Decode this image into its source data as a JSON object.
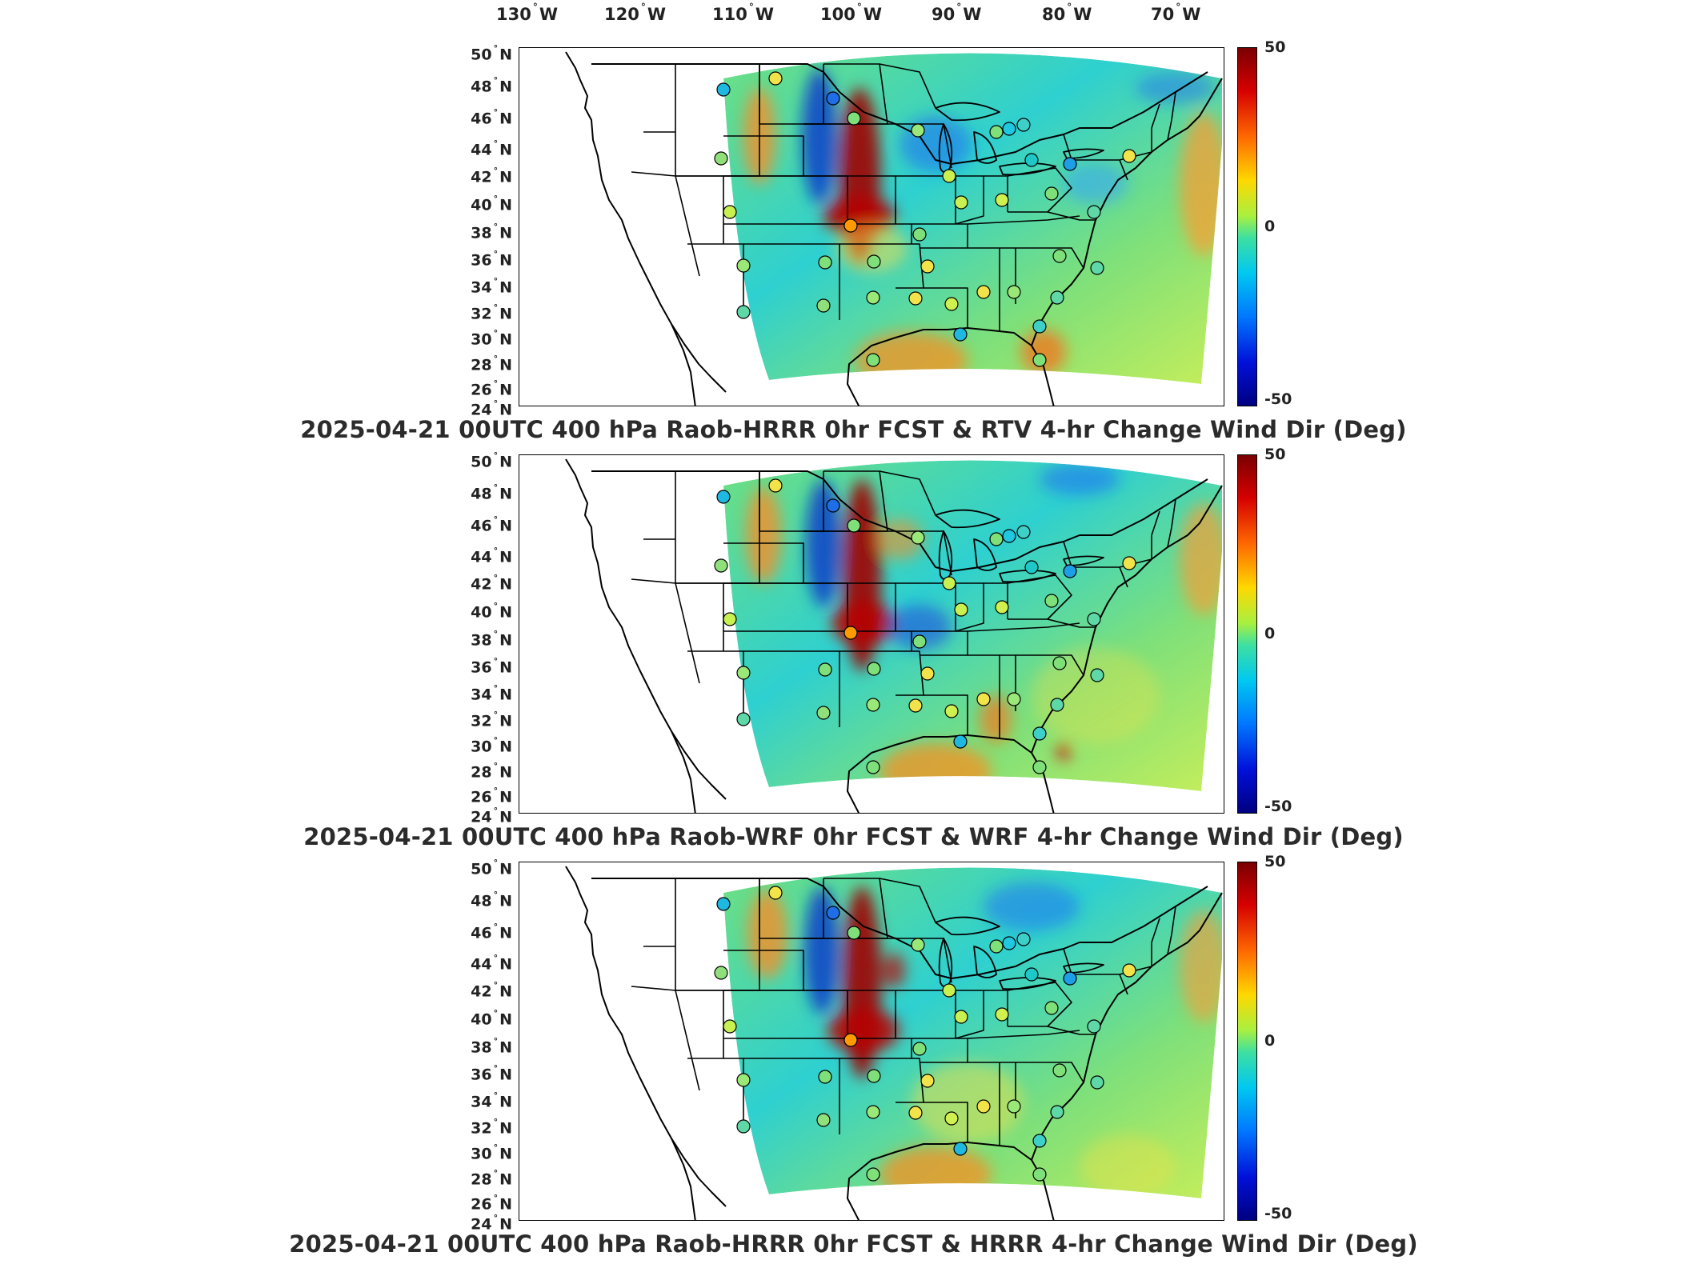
{
  "longitude_labels": [
    {
      "deg": "130",
      "dir": "W"
    },
    {
      "deg": "120",
      "dir": "W"
    },
    {
      "deg": "110",
      "dir": "W"
    },
    {
      "deg": "100",
      "dir": "W"
    },
    {
      "deg": "90",
      "dir": "W"
    },
    {
      "deg": "80",
      "dir": "W"
    },
    {
      "deg": "70",
      "dir": "W"
    }
  ],
  "latitude_labels": [
    {
      "deg": "50",
      "dir": "N"
    },
    {
      "deg": "48",
      "dir": "N"
    },
    {
      "deg": "46",
      "dir": "N"
    },
    {
      "deg": "44",
      "dir": "N"
    },
    {
      "deg": "42",
      "dir": "N"
    },
    {
      "deg": "40",
      "dir": "N"
    },
    {
      "deg": "38",
      "dir": "N"
    },
    {
      "deg": "36",
      "dir": "N"
    },
    {
      "deg": "34",
      "dir": "N"
    },
    {
      "deg": "32",
      "dir": "N"
    },
    {
      "deg": "30",
      "dir": "N"
    },
    {
      "deg": "28",
      "dir": "N"
    },
    {
      "deg": "26",
      "dir": "N"
    },
    {
      "deg": "24",
      "dir": "N"
    }
  ],
  "colorbar": {
    "max_label": "50",
    "mid_label": "0",
    "min_label": "-50",
    "colors": [
      "#7a0000",
      "#d60000",
      "#ff6a00",
      "#ffd800",
      "#a8f040",
      "#3ee0a0",
      "#00c8f0",
      "#0078ff",
      "#0010d8",
      "#000080"
    ]
  },
  "panels": [
    {
      "title": "2025-04-21 00UTC 400 hPa Raob-HRRR 0hr FCST & RTV 4-hr Change Wind Dir (Deg)"
    },
    {
      "title": "2025-04-21 00UTC 400 hPa Raob-WRF 0hr FCST & WRF 4-hr Change Wind Dir (Deg)"
    },
    {
      "title": "2025-04-21 00UTC 400 hPa Raob-HRRR 0hr FCST & HRRR 4-hr Change Wind Dir (Deg)"
    }
  ]
}
